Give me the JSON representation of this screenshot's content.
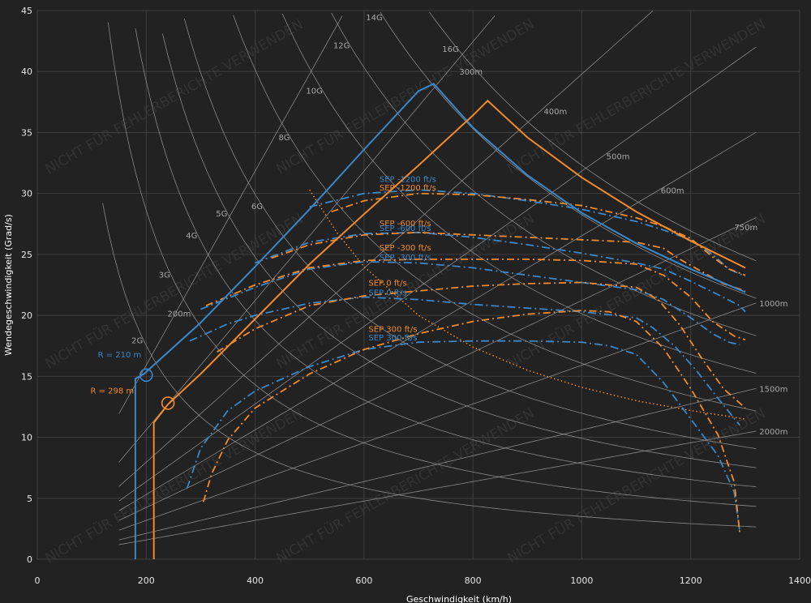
{
  "chart_data": {
    "type": "line",
    "title": "",
    "xlabel": "Geschwindigkeit (km/h)",
    "ylabel": "Wendegeschwindigkeit (Grad/s)",
    "xlim": [
      0,
      1400
    ],
    "ylim": [
      0,
      45
    ],
    "x_ticks": [
      0,
      200,
      400,
      600,
      800,
      1000,
      1200,
      1400
    ],
    "y_ticks": [
      0,
      5,
      10,
      15,
      20,
      25,
      30,
      35,
      40,
      45
    ],
    "grid": true,
    "background": "#222222",
    "colors": {
      "blue": "#3b87c8",
      "orange": "#f18b2a",
      "reference": "#9a9a9a"
    },
    "watermark": "NICHT FÜR FEHLERBERICHTE VERWENDEN",
    "g_lines": [
      {
        "label": "2G",
        "g": 2
      },
      {
        "label": "3G",
        "g": 3
      },
      {
        "label": "4G",
        "g": 4
      },
      {
        "label": "5G",
        "g": 5
      },
      {
        "label": "6G",
        "g": 6
      },
      {
        "label": "8G",
        "g": 8
      },
      {
        "label": "10G",
        "g": 10
      },
      {
        "label": "12G",
        "g": 12
      },
      {
        "label": "14G",
        "g": 14
      },
      {
        "label": "16G",
        "g": 16
      }
    ],
    "radius_lines": [
      {
        "label": "200m",
        "r": 200
      },
      {
        "label": "300m",
        "r": 300
      },
      {
        "label": "400m",
        "r": 400
      },
      {
        "label": "500m",
        "r": 500
      },
      {
        "label": "600m",
        "r": 600
      },
      {
        "label": "750m",
        "r": 750
      },
      {
        "label": "1000m",
        "r": 1000
      },
      {
        "label": "1500m",
        "r": 1500
      },
      {
        "label": "2000m",
        "r": 2000
      }
    ],
    "envelopes": [
      {
        "color": "blue",
        "x": [
          180,
          180,
          196,
          300,
          400,
          500,
          600,
          700,
          728,
          800,
          900,
          1000,
          1100,
          1200,
          1300
        ],
        "y": [
          0,
          14.8,
          15.2,
          19.4,
          24,
          28.7,
          33.6,
          38.4,
          39.0,
          35.4,
          31.5,
          28.4,
          25.9,
          23.8,
          21.9
        ]
      },
      {
        "color": "orange",
        "x": [
          214,
          214,
          240,
          300,
          400,
          500,
          600,
          700,
          800,
          827,
          900,
          1000,
          1100,
          1200,
          1300
        ],
        "y": [
          0,
          11.2,
          12.7,
          15.2,
          19.7,
          24.2,
          28.3,
          32.3,
          36.4,
          37.6,
          34.6,
          31.3,
          28.5,
          26.1,
          23.9
        ]
      }
    ],
    "corner_markers": [
      {
        "color": "blue",
        "x": 200,
        "y": 15.1,
        "label": "R = 210 m"
      },
      {
        "color": "orange",
        "x": 240,
        "y": 12.8,
        "label": "R = 298 m"
      }
    ],
    "series": [
      {
        "name": "SEP -1200 ft/s",
        "color": "blue",
        "x": [
          500,
          600,
          700,
          800,
          900,
          1000,
          1100,
          1150,
          1200,
          1240,
          1270,
          1300
        ],
        "y": [
          28.9,
          30.0,
          30.3,
          30.0,
          29.4,
          28.7,
          27.7,
          27.0,
          26.2,
          25.0,
          23.8,
          23.2
        ]
      },
      {
        "name": "SEP -1200 ft/s",
        "color": "orange",
        "x": [
          540,
          600,
          700,
          800,
          900,
          1000,
          1100,
          1150,
          1200,
          1240,
          1270,
          1300
        ],
        "y": [
          28.5,
          29.4,
          30.0,
          29.9,
          29.5,
          29.0,
          28.0,
          27.3,
          26.3,
          24.8,
          23.8,
          23.3
        ]
      },
      {
        "name": "SEP -600 ft/s",
        "color": "blue",
        "x": [
          400,
          500,
          600,
          700,
          800,
          900,
          1000,
          1100,
          1150,
          1200,
          1250,
          1290,
          1300
        ],
        "y": [
          24.3,
          26.0,
          26.7,
          26.8,
          26.4,
          25.8,
          25.1,
          24.3,
          23.8,
          22.8,
          21.7,
          20.8,
          20.3
        ]
      },
      {
        "name": "SEP -600 ft/s",
        "color": "orange",
        "x": [
          430,
          500,
          600,
          700,
          800,
          900,
          1000,
          1100,
          1150,
          1180,
          1220,
          1260,
          1300
        ],
        "y": [
          24.7,
          25.8,
          26.6,
          26.8,
          26.6,
          26.4,
          26.2,
          26.0,
          25.5,
          24.6,
          23.6,
          22.6,
          22.0
        ]
      },
      {
        "name": "SEP -300 ft/s",
        "color": "blue",
        "x": [
          300,
          400,
          500,
          600,
          700,
          800,
          900,
          1000,
          1100,
          1150,
          1200,
          1240,
          1270,
          1290
        ],
        "y": [
          20.5,
          22.3,
          23.8,
          24.4,
          24.3,
          23.9,
          23.3,
          22.7,
          22.1,
          21.3,
          19.8,
          18.5,
          17.8,
          17.6
        ]
      },
      {
        "name": "SEP -300 ft/s",
        "color": "orange",
        "x": [
          310,
          400,
          500,
          600,
          700,
          800,
          900,
          1000,
          1100,
          1150,
          1200,
          1240,
          1280,
          1300
        ],
        "y": [
          20.8,
          22.5,
          23.9,
          24.5,
          24.6,
          24.6,
          24.6,
          24.5,
          24.2,
          23.3,
          21.5,
          19.5,
          18.3,
          18.0
        ]
      },
      {
        "name": "SEP 0 ft/s",
        "color": "blue",
        "x": [
          280,
          350,
          400,
          500,
          600,
          700,
          800,
          900,
          1000,
          1100,
          1130,
          1170,
          1210,
          1250,
          1290
        ],
        "y": [
          17.9,
          19.3,
          20.0,
          21.0,
          21.5,
          21.3,
          20.9,
          20.6,
          20.3,
          19.8,
          19.0,
          17.5,
          15.5,
          13.2,
          11.0
        ]
      },
      {
        "name": "SEP 0 ft/s",
        "color": "orange",
        "x": [
          330,
          400,
          500,
          600,
          700,
          800,
          900,
          1000,
          1100,
          1140,
          1180,
          1220,
          1260,
          1300
        ],
        "y": [
          17.0,
          18.9,
          20.8,
          21.6,
          22.0,
          22.4,
          22.6,
          22.7,
          22.3,
          21.3,
          19.2,
          16.5,
          14.0,
          12.4
        ]
      },
      {
        "name": "SEP 300 ft/s",
        "color": "blue",
        "x": [
          275,
          300,
          350,
          400,
          500,
          600,
          700,
          800,
          900,
          1000,
          1050,
          1100,
          1150,
          1200,
          1250,
          1280,
          1290
        ],
        "y": [
          5.8,
          9.1,
          12.2,
          13.8,
          15.8,
          17.2,
          17.8,
          17.9,
          17.9,
          17.8,
          17.5,
          16.8,
          14.5,
          11.5,
          8.5,
          5.5,
          2.3
        ]
      },
      {
        "name": "SEP 300 ft/s",
        "color": "orange",
        "x": [
          305,
          320,
          350,
          400,
          500,
          600,
          700,
          800,
          900,
          1000,
          1050,
          1100,
          1150,
          1200,
          1250,
          1280,
          1290
        ],
        "y": [
          4.7,
          7.0,
          9.8,
          12.4,
          15.2,
          17.2,
          18.5,
          19.5,
          20.1,
          20.4,
          20.3,
          19.5,
          17.3,
          14.0,
          10.2,
          6.3,
          2.2
        ]
      }
    ],
    "dotted_curves": [
      {
        "color": "orange",
        "x": [
          500,
          550,
          600,
          700,
          800,
          900,
          1000,
          1100,
          1200,
          1300
        ],
        "y": [
          30.3,
          26.8,
          24.0,
          20.0,
          17.4,
          15.5,
          14.1,
          13.0,
          12.2,
          11.5
        ]
      }
    ],
    "sep_labels": [
      {
        "text": "SEP -1200 ft/s",
        "color": "blue",
        "x": 670,
        "y": 30.8
      },
      {
        "text": "SEP -1200 ft/s",
        "color": "orange",
        "x": 670,
        "y": 30.1
      },
      {
        "text": "SEP -600 ft/s",
        "color": "orange",
        "x": 670,
        "y": 27.2
      },
      {
        "text": "SEP -600 ft/s",
        "color": "blue",
        "x": 670,
        "y": 26.8
      },
      {
        "text": "SEP -300 ft/s",
        "color": "orange",
        "x": 670,
        "y": 25.2
      },
      {
        "text": "SEP -300 ft/s",
        "color": "blue",
        "x": 670,
        "y": 24.4
      },
      {
        "text": "SEP 0 ft/s",
        "color": "orange",
        "x": 650,
        "y": 22.3
      },
      {
        "text": "SEP 0 ft/s",
        "color": "blue",
        "x": 650,
        "y": 21.5
      },
      {
        "text": "SEP 300 ft/s",
        "color": "orange",
        "x": 650,
        "y": 18.5
      },
      {
        "text": "SEP 300 ft/s",
        "color": "blue",
        "x": 650,
        "y": 17.8
      }
    ]
  }
}
